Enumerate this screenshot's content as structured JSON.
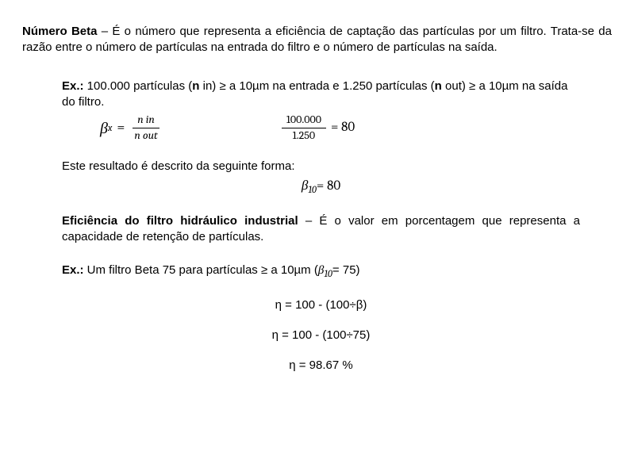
{
  "para1_bold": "Número Beta",
  "para1_rest": " – É o número que representa a eficiência de captação das partículas por um filtro. Trata-se da razão entre o número de partículas na entrada do filtro e o número de partículas na saída.",
  "ex_label": "Ex.:",
  "ex1_a": " 100.000 partículas (",
  "ex1_nb": "n",
  "ex1_in": " in",
  "ex1_b": ") ≥ a 10µm na entrada e 1.250 partículas (",
  "ex1_out": " out",
  "ex1_c": ") ≥ a 10µm na saída do filtro.",
  "beta_sym": "β",
  "beta_sub_x": "x",
  "eq_sym": " = ",
  "frac1_num_a": "n ",
  "frac1_num_b": "in",
  "frac1_den_a": "n ",
  "frac1_den_b": "out",
  "frac2_num": "100.000",
  "frac2_den": "1.250",
  "frac2_result": " = 80",
  "result_text": "Este resultado é descrito da seguinte forma:",
  "beta10_sub": "10",
  "beta10_val": "= 80",
  "para2_bold": "Eficiência do filtro hidráulico industrial",
  "para2_rest": " – É o valor em porcentagem que representa a capacidade de retenção de partículas.",
  "ex2_a": " Um filtro Beta 75 para partículas ≥ a 10µm (",
  "ex2_betaval": "= 75)",
  "eta1": "η = 100 - (100÷β)",
  "eta2": "η = 100 - (100÷75)",
  "eta3": "η = 98.67 %"
}
